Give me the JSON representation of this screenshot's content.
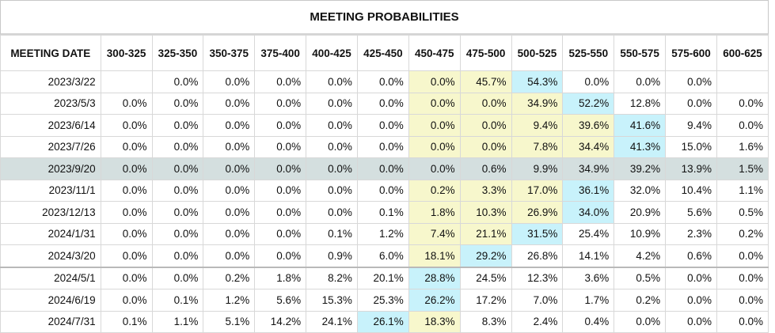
{
  "title": "MEETING PROBABILITIES",
  "columns": [
    "MEETING DATE",
    "300-325",
    "325-350",
    "350-375",
    "375-400",
    "400-425",
    "425-450",
    "450-475",
    "475-500",
    "500-525",
    "525-550",
    "550-575",
    "575-600",
    "600-625"
  ],
  "rows": [
    {
      "date": "2023/3/22",
      "cells": [
        "",
        "0.0%",
        "0.0%",
        "0.0%",
        "0.0%",
        "0.0%",
        "0.0%",
        "45.7%",
        "54.3%",
        "0.0%",
        "0.0%",
        "0.0%",
        ""
      ],
      "hl": {
        "6": "yellow",
        "7": "yellow",
        "8": "blue"
      }
    },
    {
      "date": "2023/5/3",
      "cells": [
        "0.0%",
        "0.0%",
        "0.0%",
        "0.0%",
        "0.0%",
        "0.0%",
        "0.0%",
        "0.0%",
        "34.9%",
        "52.2%",
        "12.8%",
        "0.0%",
        "0.0%"
      ],
      "hl": {
        "6": "yellow",
        "7": "yellow",
        "8": "yellow",
        "9": "blue"
      }
    },
    {
      "date": "2023/6/14",
      "cells": [
        "0.0%",
        "0.0%",
        "0.0%",
        "0.0%",
        "0.0%",
        "0.0%",
        "0.0%",
        "0.0%",
        "9.4%",
        "39.6%",
        "41.6%",
        "9.4%",
        "0.0%"
      ],
      "hl": {
        "6": "yellow",
        "7": "yellow",
        "8": "yellow",
        "9": "yellow",
        "10": "blue"
      }
    },
    {
      "date": "2023/7/26",
      "cells": [
        "0.0%",
        "0.0%",
        "0.0%",
        "0.0%",
        "0.0%",
        "0.0%",
        "0.0%",
        "0.0%",
        "7.8%",
        "34.4%",
        "41.3%",
        "15.0%",
        "1.6%"
      ],
      "hl": {
        "6": "yellow",
        "7": "yellow",
        "8": "yellow",
        "9": "yellow",
        "10": "blue"
      }
    },
    {
      "date": "2023/9/20",
      "cells": [
        "0.0%",
        "0.0%",
        "0.0%",
        "0.0%",
        "0.0%",
        "0.0%",
        "0.0%",
        "0.6%",
        "9.9%",
        "34.9%",
        "39.2%",
        "13.9%",
        "1.5%"
      ],
      "hl": {},
      "current": true
    },
    {
      "date": "2023/11/1",
      "cells": [
        "0.0%",
        "0.0%",
        "0.0%",
        "0.0%",
        "0.0%",
        "0.0%",
        "0.2%",
        "3.3%",
        "17.0%",
        "36.1%",
        "32.0%",
        "10.4%",
        "1.1%"
      ],
      "hl": {
        "6": "yellow",
        "7": "yellow",
        "8": "yellow",
        "9": "blue"
      }
    },
    {
      "date": "2023/12/13",
      "cells": [
        "0.0%",
        "0.0%",
        "0.0%",
        "0.0%",
        "0.0%",
        "0.1%",
        "1.8%",
        "10.3%",
        "26.9%",
        "34.0%",
        "20.9%",
        "5.6%",
        "0.5%"
      ],
      "hl": {
        "6": "yellow",
        "7": "yellow",
        "8": "yellow",
        "9": "blue"
      }
    },
    {
      "date": "2024/1/31",
      "cells": [
        "0.0%",
        "0.0%",
        "0.0%",
        "0.0%",
        "0.1%",
        "1.2%",
        "7.4%",
        "21.1%",
        "31.5%",
        "25.4%",
        "10.9%",
        "2.3%",
        "0.2%"
      ],
      "hl": {
        "6": "yellow",
        "7": "yellow",
        "8": "blue"
      }
    },
    {
      "date": "2024/3/20",
      "cells": [
        "0.0%",
        "0.0%",
        "0.0%",
        "0.0%",
        "0.9%",
        "6.0%",
        "18.1%",
        "29.2%",
        "26.8%",
        "14.1%",
        "4.2%",
        "0.6%",
        "0.0%"
      ],
      "hl": {
        "6": "yellow",
        "7": "blue"
      }
    },
    {
      "date": "2024/5/1",
      "cells": [
        "0.0%",
        "0.0%",
        "0.2%",
        "1.8%",
        "8.2%",
        "20.1%",
        "28.8%",
        "24.5%",
        "12.3%",
        "3.6%",
        "0.5%",
        "0.0%",
        "0.0%"
      ],
      "hl": {
        "6": "blue"
      },
      "sep": true
    },
    {
      "date": "2024/6/19",
      "cells": [
        "0.0%",
        "0.1%",
        "1.2%",
        "5.6%",
        "15.3%",
        "25.3%",
        "26.2%",
        "17.2%",
        "7.0%",
        "1.7%",
        "0.2%",
        "0.0%",
        "0.0%"
      ],
      "hl": {
        "6": "blue"
      }
    },
    {
      "date": "2024/7/31",
      "cells": [
        "0.1%",
        "1.1%",
        "5.1%",
        "14.2%",
        "24.1%",
        "26.1%",
        "18.3%",
        "8.3%",
        "2.4%",
        "0.4%",
        "0.0%",
        "0.0%",
        "0.0%"
      ],
      "hl": {
        "5": "blue",
        "6": "yellow"
      }
    }
  ]
}
